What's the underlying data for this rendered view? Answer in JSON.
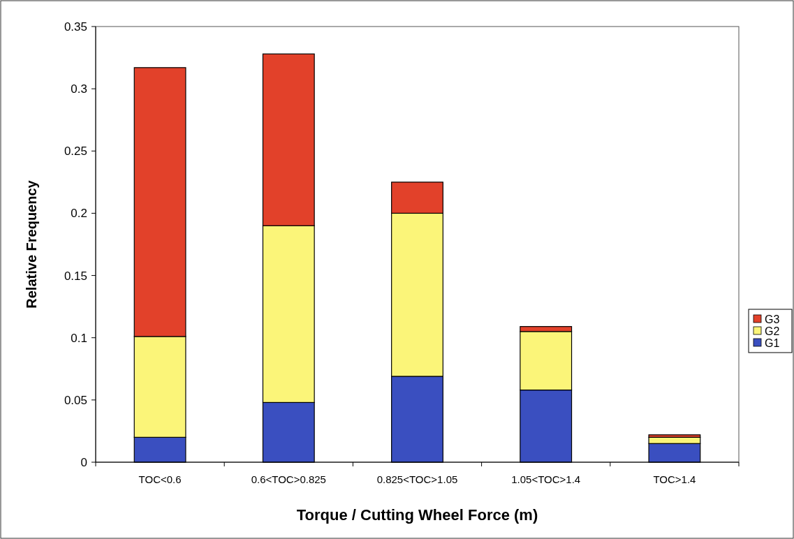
{
  "chart_data": {
    "type": "bar",
    "stacked": true,
    "xlabel": "Torque / Cutting Wheel Force  (m)",
    "ylabel": "Relative Frequency",
    "categories": [
      "TOC<0.6",
      "0.6<TOC>0.825",
      "0.825<TOC>1.05",
      "1.05<TOC>1.4",
      "TOC>1.4"
    ],
    "series": [
      {
        "name": "G1",
        "color": "#3a4fc0",
        "values": [
          0.02,
          0.048,
          0.069,
          0.058,
          0.015
        ]
      },
      {
        "name": "G2",
        "color": "#fbf579",
        "values": [
          0.081,
          0.142,
          0.131,
          0.047,
          0.005
        ]
      },
      {
        "name": "G3",
        "color": "#e2412a",
        "values": [
          0.216,
          0.138,
          0.025,
          0.004,
          0.002
        ]
      }
    ],
    "ylim": [
      0,
      0.35
    ],
    "yticks": [
      0,
      0.05,
      0.1,
      0.15,
      0.2,
      0.25,
      0.3,
      0.35
    ],
    "grid": false,
    "legend": "right"
  }
}
